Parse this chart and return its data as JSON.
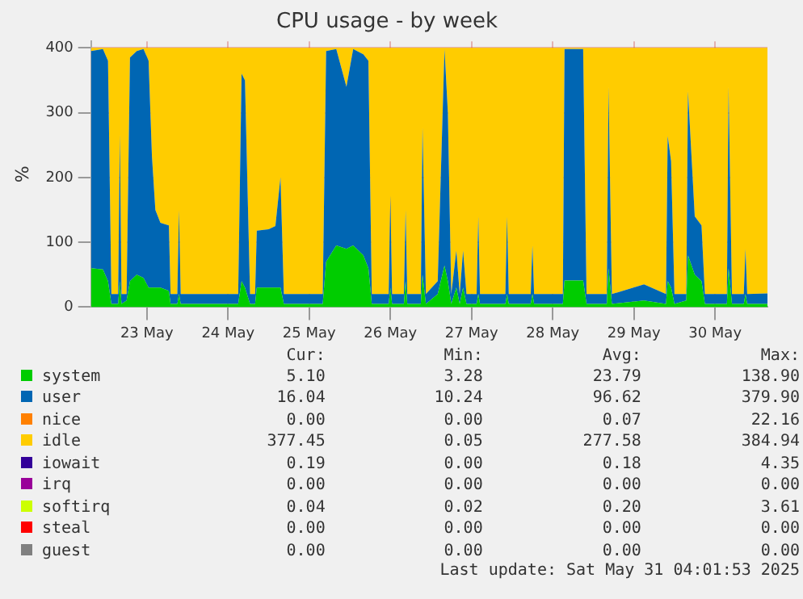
{
  "chart_data": {
    "type": "area",
    "stacked": true,
    "title": "CPU usage - by week",
    "ylabel": "%",
    "grid": true,
    "legend": "bottom",
    "marker": "none",
    "x": [
      "2025-05-22T19:30",
      "2025-05-22T23:00",
      "2025-05-23T00:30",
      "2025-05-23T01:30",
      "2025-05-23T03:30",
      "2025-05-23T04:00",
      "2025-05-23T04:30",
      "2025-05-23T06:00",
      "2025-05-23T07:00",
      "2025-05-23T09:00",
      "2025-05-23T11:00",
      "2025-05-23T12:30",
      "2025-05-23T13:30",
      "2025-05-23T14:30",
      "2025-05-23T16:00",
      "2025-05-23T18:30",
      "2025-05-23T19:00",
      "2025-05-23T21:00",
      "2025-05-23T21:30",
      "2025-05-23T22:00",
      "2025-05-24T04:00",
      "2025-05-24T10:00",
      "2025-05-24T15:00",
      "2025-05-24T16:00",
      "2025-05-24T17:00",
      "2025-05-24T18:30",
      "2025-05-24T20:00",
      "2025-05-24T20:30",
      "2025-05-25T00:00",
      "2025-05-25T02:00",
      "2025-05-25T03:30",
      "2025-05-25T04:30",
      "2025-05-25T10:00",
      "2025-05-25T16:00",
      "2025-05-25T17:00",
      "2025-05-25T20:00",
      "2025-05-25T23:00",
      "2025-05-26T01:00",
      "2025-05-26T04:00",
      "2025-05-26T05:30",
      "2025-05-26T06:30",
      "2025-05-26T11:30",
      "2025-05-26T12:00",
      "2025-05-26T12:30",
      "2025-05-26T16:00",
      "2025-05-26T16:30",
      "2025-05-26T17:00",
      "2025-05-26T21:00",
      "2025-05-26T21:30",
      "2025-05-26T22:30",
      "2025-05-27T02:00",
      "2025-05-27T04:00",
      "2025-05-27T05:00",
      "2025-05-27T06:00",
      "2025-05-27T07:30",
      "2025-05-27T08:30",
      "2025-05-27T09:30",
      "2025-05-27T10:30",
      "2025-05-27T13:30",
      "2025-05-27T14:00",
      "2025-05-27T14:30",
      "2025-05-27T22:00",
      "2025-05-27T22:30",
      "2025-05-27T23:00",
      "2025-05-28T05:30",
      "2025-05-28T06:00",
      "2025-05-28T06:30",
      "2025-05-28T15:00",
      "2025-05-28T15:30",
      "2025-05-28T21:00",
      "2025-05-28T22:00",
      "2025-05-29T04:00",
      "2025-05-29T04:30",
      "2025-05-29T05:30",
      "2025-05-29T15:00",
      "2025-05-29T21:30",
      "2025-05-29T22:00",
      "2025-05-29T23:00",
      "2025-05-30T00:00",
      "2025-05-30T03:30",
      "2025-05-30T04:00",
      "2025-05-30T06:00",
      "2025-05-30T08:00",
      "2025-05-30T09:00",
      "2025-05-30T15:30",
      "2025-05-30T16:00",
      "2025-05-30T17:00",
      "2025-05-30T20:30",
      "2025-05-30T21:00",
      "2025-05-30T21:30",
      "2025-05-31T03:30"
    ],
    "xlim": [
      "2025-05-22T19:30",
      "2025-05-31T03:30"
    ],
    "xticks": [
      {
        "value": "2025-05-23T12:00",
        "label": "23 May"
      },
      {
        "value": "2025-05-24T12:00",
        "label": "24 May"
      },
      {
        "value": "2025-05-25T12:00",
        "label": "25 May"
      },
      {
        "value": "2025-05-26T12:00",
        "label": "26 May"
      },
      {
        "value": "2025-05-27T12:00",
        "label": "27 May"
      },
      {
        "value": "2025-05-28T12:00",
        "label": "28 May"
      },
      {
        "value": "2025-05-29T12:00",
        "label": "29 May"
      },
      {
        "value": "2025-05-30T12:00",
        "label": "30 May"
      }
    ],
    "ylim": [
      0,
      410
    ],
    "yticks": [
      0,
      100,
      200,
      300,
      400
    ],
    "series": [
      {
        "name": "system",
        "color": "#00cc00",
        "values": [
          60,
          58,
          40,
          5,
          5,
          40,
          5,
          10,
          40,
          50,
          45,
          30,
          30,
          30,
          30,
          25,
          5,
          5,
          20,
          5,
          5,
          5,
          5,
          40,
          30,
          5,
          5,
          30,
          30,
          30,
          30,
          5,
          5,
          5,
          70,
          95,
          90,
          95,
          80,
          60,
          5,
          5,
          30,
          5,
          5,
          40,
          5,
          5,
          50,
          5,
          20,
          64,
          40,
          5,
          30,
          5,
          30,
          5,
          5,
          20,
          5,
          5,
          20,
          5,
          5,
          20,
          5,
          5,
          41,
          41,
          5,
          5,
          60,
          5,
          10,
          5,
          40,
          30,
          5,
          10,
          80,
          50,
          40,
          5,
          5,
          60,
          5,
          5,
          20,
          5,
          5
        ]
      },
      {
        "name": "user",
        "color": "#0066b3",
        "values": [
          335,
          340,
          340,
          15,
          15,
          227,
          15,
          10,
          345,
          345,
          353,
          350,
          202,
          120,
          100,
          101,
          15,
          15,
          130,
          15,
          15,
          15,
          15,
          320,
          320,
          15,
          15,
          88,
          90,
          95,
          170,
          15,
          15,
          15,
          325,
          303,
          250,
          303,
          310,
          320,
          15,
          15,
          142,
          15,
          15,
          110,
          15,
          15,
          228,
          15,
          20,
          334,
          260,
          15,
          57,
          15,
          57,
          15,
          15,
          120,
          15,
          15,
          120,
          15,
          15,
          75,
          15,
          15,
          357,
          357,
          15,
          15,
          280,
          15,
          25,
          15,
          224,
          195,
          15,
          10,
          253,
          90,
          86,
          15,
          15,
          280,
          15,
          15,
          70,
          15,
          16
        ]
      },
      {
        "name": "nice",
        "color": "#ff8000",
        "values": [
          null,
          null,
          null,
          null,
          null,
          null,
          null,
          null,
          null,
          null,
          null,
          null,
          null,
          null,
          null,
          null,
          null,
          null,
          null,
          null,
          null,
          null,
          null,
          null,
          null,
          null,
          null,
          null,
          null,
          null,
          null,
          null,
          null,
          null,
          null,
          null,
          null,
          null,
          null,
          null,
          null,
          null,
          null,
          null,
          null,
          null,
          null,
          null,
          null,
          null,
          null,
          null,
          null,
          null,
          null,
          null,
          null,
          null,
          null,
          null,
          null,
          null,
          null,
          null,
          null,
          null,
          null,
          null,
          null,
          null,
          null,
          null,
          null,
          null,
          null,
          null,
          null,
          null,
          null,
          null,
          null,
          null,
          null,
          null,
          null,
          null,
          null,
          null,
          null,
          null,
          null
        ]
      },
      {
        "name": "idle",
        "color": "#ffcc00",
        "values": [
          5,
          2,
          20,
          380,
          380,
          133,
          380,
          380,
          15,
          5,
          2,
          20,
          168,
          250,
          270,
          274,
          380,
          380,
          250,
          380,
          380,
          380,
          380,
          40,
          50,
          380,
          380,
          282,
          280,
          275,
          200,
          380,
          380,
          380,
          5,
          2,
          60,
          2,
          10,
          20,
          380,
          380,
          228,
          380,
          380,
          250,
          380,
          380,
          122,
          380,
          360,
          2,
          100,
          380,
          313,
          380,
          313,
          380,
          380,
          260,
          380,
          380,
          260,
          380,
          380,
          305,
          380,
          380,
          2,
          2,
          380,
          380,
          60,
          380,
          365,
          380,
          136,
          175,
          380,
          380,
          67,
          260,
          274,
          380,
          380,
          60,
          380,
          380,
          310,
          380,
          379
        ]
      },
      {
        "name": "iowait",
        "color": "#330099",
        "values": [
          null,
          null,
          null,
          null,
          null,
          null,
          null,
          null,
          null,
          null,
          null,
          null,
          null,
          null,
          null,
          null,
          null,
          null,
          null,
          null,
          null,
          null,
          null,
          null,
          null,
          null,
          null,
          null,
          null,
          null,
          null,
          null,
          null,
          null,
          null,
          null,
          null,
          null,
          null,
          null,
          null,
          null,
          null,
          null,
          null,
          null,
          null,
          null,
          null,
          null,
          null,
          null,
          null,
          null,
          null,
          null,
          null,
          null,
          null,
          null,
          null,
          null,
          null,
          null,
          null,
          null,
          null,
          null,
          null,
          null,
          null,
          null,
          null,
          null,
          null,
          null,
          null,
          null,
          null,
          null,
          null,
          null,
          null,
          null,
          null,
          null,
          null,
          null,
          null,
          null,
          null
        ]
      },
      {
        "name": "irq",
        "color": "#990099",
        "values": [
          null,
          null,
          null,
          null,
          null,
          null,
          null,
          null,
          null,
          null,
          null,
          null,
          null,
          null,
          null,
          null,
          null,
          null,
          null,
          null,
          null,
          null,
          null,
          null,
          null,
          null,
          null,
          null,
          null,
          null,
          null,
          null,
          null,
          null,
          null,
          null,
          null,
          null,
          null,
          null,
          null,
          null,
          null,
          null,
          null,
          null,
          null,
          null,
          null,
          null,
          null,
          null,
          null,
          null,
          null,
          null,
          null,
          null,
          null,
          null,
          null,
          null,
          null,
          null,
          null,
          null,
          null,
          null,
          null,
          null,
          null,
          null,
          null,
          null,
          null,
          null,
          null,
          null,
          null,
          null,
          null,
          null,
          null,
          null,
          null,
          null,
          null,
          null,
          null,
          null,
          null
        ]
      },
      {
        "name": "softirq",
        "color": "#ccff00",
        "values": [
          null,
          null,
          null,
          null,
          null,
          null,
          null,
          null,
          null,
          null,
          null,
          null,
          null,
          null,
          null,
          null,
          null,
          null,
          null,
          null,
          null,
          null,
          null,
          null,
          null,
          null,
          null,
          null,
          null,
          null,
          null,
          null,
          null,
          null,
          null,
          null,
          null,
          null,
          null,
          null,
          null,
          null,
          null,
          null,
          null,
          null,
          null,
          null,
          null,
          null,
          null,
          null,
          null,
          null,
          null,
          null,
          null,
          null,
          null,
          null,
          null,
          null,
          null,
          null,
          null,
          null,
          null,
          null,
          null,
          null,
          null,
          null,
          null,
          null,
          null,
          null,
          null,
          null,
          null,
          null,
          null,
          null,
          null,
          null,
          null,
          null,
          null,
          null,
          null,
          null,
          null
        ]
      },
      {
        "name": "steal",
        "color": "#ff0000",
        "values": [
          null,
          null,
          null,
          null,
          null,
          null,
          null,
          null,
          null,
          null,
          null,
          null,
          null,
          null,
          null,
          null,
          null,
          null,
          null,
          null,
          null,
          null,
          null,
          null,
          null,
          null,
          null,
          null,
          null,
          null,
          null,
          null,
          null,
          null,
          null,
          null,
          null,
          null,
          null,
          null,
          null,
          null,
          null,
          null,
          null,
          null,
          null,
          null,
          null,
          null,
          null,
          null,
          null,
          null,
          null,
          null,
          null,
          null,
          null,
          null,
          null,
          null,
          null,
          null,
          null,
          null,
          null,
          null,
          null,
          null,
          null,
          null,
          null,
          null,
          null,
          null,
          null,
          null,
          null,
          null,
          null,
          null,
          null,
          null,
          null,
          null,
          null,
          null,
          null,
          null,
          null
        ]
      },
      {
        "name": "guest",
        "color": "#808080",
        "values": [
          null,
          null,
          null,
          null,
          null,
          null,
          null,
          null,
          null,
          null,
          null,
          null,
          null,
          null,
          null,
          null,
          null,
          null,
          null,
          null,
          null,
          null,
          null,
          null,
          null,
          null,
          null,
          null,
          null,
          null,
          null,
          null,
          null,
          null,
          null,
          null,
          null,
          null,
          null,
          null,
          null,
          null,
          null,
          null,
          null,
          null,
          null,
          null,
          null,
          null,
          null,
          null,
          null,
          null,
          null,
          null,
          null,
          null,
          null,
          null,
          null,
          null,
          null,
          null,
          null,
          null,
          null,
          null,
          null,
          null,
          null,
          null,
          null,
          null,
          null,
          null,
          null,
          null,
          null,
          null,
          null,
          null,
          null,
          null,
          null,
          null,
          null,
          null,
          null,
          null,
          null
        ]
      }
    ],
    "annotations": [
      "Cur:",
      "Min:",
      "Avg:",
      "Max:",
      "5.10",
      "3.28",
      "23.79",
      "138.90",
      "16.04",
      "10.24",
      "96.62",
      "379.90",
      "0.00",
      "0.00",
      "0.07",
      "22.16",
      "377.45",
      "0.05",
      "277.58",
      "384.94",
      "0.19",
      "0.00",
      "0.18",
      "4.35",
      "0.00",
      "0.00",
      "0.00",
      "0.00",
      "0.04",
      "0.02",
      "0.20",
      "3.61",
      "0.00",
      "0.00",
      "0.00",
      "0.00",
      "0.00",
      "0.00",
      "0.00",
      "0.00",
      "Last update: Sat May 31 04:01:53 2025"
    ]
  }
}
